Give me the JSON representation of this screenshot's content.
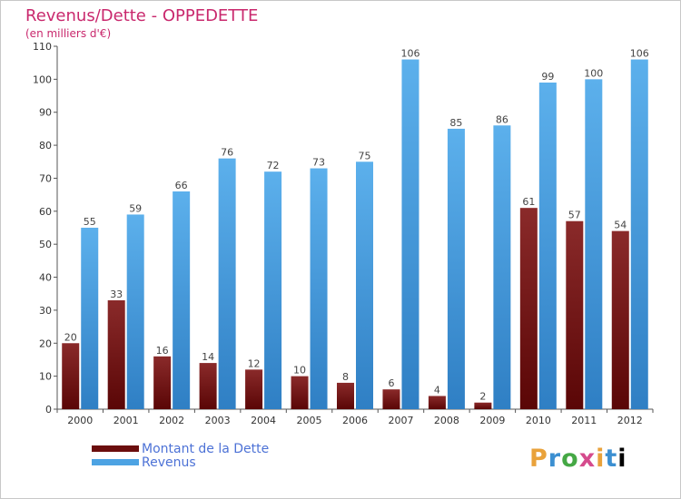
{
  "chart_data": {
    "type": "bar",
    "title": "Revenus/Dette - OPPEDETTE",
    "subtitle": "(en milliers d'€)",
    "categories": [
      "2000",
      "2001",
      "2002",
      "2003",
      "2004",
      "2005",
      "2006",
      "2007",
      "2008",
      "2009",
      "2010",
      "2011",
      "2012"
    ],
    "series": [
      {
        "name": "Montant de la Dette",
        "color": "#7a1a1a",
        "values": [
          20,
          33,
          16,
          14,
          12,
          10,
          8,
          6,
          4,
          2,
          61,
          57,
          54
        ]
      },
      {
        "name": "Revenus",
        "color": "#4da3e3",
        "values": [
          55,
          59,
          66,
          76,
          72,
          73,
          75,
          106,
          85,
          86,
          99,
          100,
          106
        ]
      }
    ],
    "ylim": [
      0,
      110
    ],
    "yticks": [
      0,
      10,
      20,
      30,
      40,
      50,
      60,
      70,
      80,
      90,
      100,
      110
    ],
    "grid": false,
    "legend_position": "bottom-left"
  },
  "logo": {
    "letters": [
      "P",
      "r",
      "o",
      "x",
      "i",
      "t",
      "i"
    ]
  }
}
